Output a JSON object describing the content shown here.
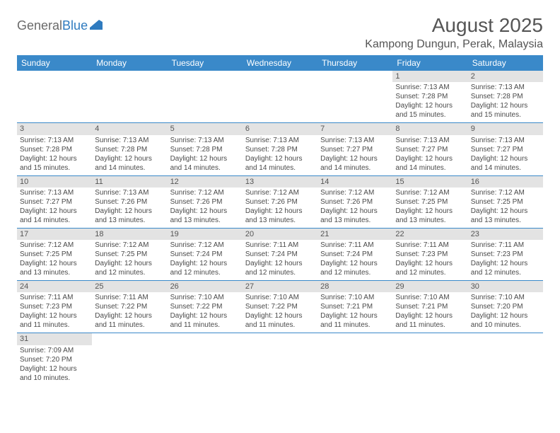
{
  "brand": {
    "part1": "General",
    "part2": "Blue"
  },
  "title": "August 2025",
  "location": "Kampong Dungun, Perak, Malaysia",
  "colors": {
    "header_bg": "#3a89c9",
    "header_fg": "#ffffff",
    "daynum_bg": "#e3e3e3",
    "week_border": "#3a89c9",
    "text": "#4a4a4a",
    "brand_gray": "#6a6a6a",
    "brand_blue": "#2f7bbf"
  },
  "dow": [
    "Sunday",
    "Monday",
    "Tuesday",
    "Wednesday",
    "Thursday",
    "Friday",
    "Saturday"
  ],
  "weeks": [
    [
      {
        "n": "",
        "sr": "",
        "ss": "",
        "dl1": "",
        "dl2": ""
      },
      {
        "n": "",
        "sr": "",
        "ss": "",
        "dl1": "",
        "dl2": ""
      },
      {
        "n": "",
        "sr": "",
        "ss": "",
        "dl1": "",
        "dl2": ""
      },
      {
        "n": "",
        "sr": "",
        "ss": "",
        "dl1": "",
        "dl2": ""
      },
      {
        "n": "",
        "sr": "",
        "ss": "",
        "dl1": "",
        "dl2": ""
      },
      {
        "n": "1",
        "sr": "Sunrise: 7:13 AM",
        "ss": "Sunset: 7:28 PM",
        "dl1": "Daylight: 12 hours",
        "dl2": "and 15 minutes."
      },
      {
        "n": "2",
        "sr": "Sunrise: 7:13 AM",
        "ss": "Sunset: 7:28 PM",
        "dl1": "Daylight: 12 hours",
        "dl2": "and 15 minutes."
      }
    ],
    [
      {
        "n": "3",
        "sr": "Sunrise: 7:13 AM",
        "ss": "Sunset: 7:28 PM",
        "dl1": "Daylight: 12 hours",
        "dl2": "and 15 minutes."
      },
      {
        "n": "4",
        "sr": "Sunrise: 7:13 AM",
        "ss": "Sunset: 7:28 PM",
        "dl1": "Daylight: 12 hours",
        "dl2": "and 14 minutes."
      },
      {
        "n": "5",
        "sr": "Sunrise: 7:13 AM",
        "ss": "Sunset: 7:28 PM",
        "dl1": "Daylight: 12 hours",
        "dl2": "and 14 minutes."
      },
      {
        "n": "6",
        "sr": "Sunrise: 7:13 AM",
        "ss": "Sunset: 7:28 PM",
        "dl1": "Daylight: 12 hours",
        "dl2": "and 14 minutes."
      },
      {
        "n": "7",
        "sr": "Sunrise: 7:13 AM",
        "ss": "Sunset: 7:27 PM",
        "dl1": "Daylight: 12 hours",
        "dl2": "and 14 minutes."
      },
      {
        "n": "8",
        "sr": "Sunrise: 7:13 AM",
        "ss": "Sunset: 7:27 PM",
        "dl1": "Daylight: 12 hours",
        "dl2": "and 14 minutes."
      },
      {
        "n": "9",
        "sr": "Sunrise: 7:13 AM",
        "ss": "Sunset: 7:27 PM",
        "dl1": "Daylight: 12 hours",
        "dl2": "and 14 minutes."
      }
    ],
    [
      {
        "n": "10",
        "sr": "Sunrise: 7:13 AM",
        "ss": "Sunset: 7:27 PM",
        "dl1": "Daylight: 12 hours",
        "dl2": "and 14 minutes."
      },
      {
        "n": "11",
        "sr": "Sunrise: 7:13 AM",
        "ss": "Sunset: 7:26 PM",
        "dl1": "Daylight: 12 hours",
        "dl2": "and 13 minutes."
      },
      {
        "n": "12",
        "sr": "Sunrise: 7:12 AM",
        "ss": "Sunset: 7:26 PM",
        "dl1": "Daylight: 12 hours",
        "dl2": "and 13 minutes."
      },
      {
        "n": "13",
        "sr": "Sunrise: 7:12 AM",
        "ss": "Sunset: 7:26 PM",
        "dl1": "Daylight: 12 hours",
        "dl2": "and 13 minutes."
      },
      {
        "n": "14",
        "sr": "Sunrise: 7:12 AM",
        "ss": "Sunset: 7:26 PM",
        "dl1": "Daylight: 12 hours",
        "dl2": "and 13 minutes."
      },
      {
        "n": "15",
        "sr": "Sunrise: 7:12 AM",
        "ss": "Sunset: 7:25 PM",
        "dl1": "Daylight: 12 hours",
        "dl2": "and 13 minutes."
      },
      {
        "n": "16",
        "sr": "Sunrise: 7:12 AM",
        "ss": "Sunset: 7:25 PM",
        "dl1": "Daylight: 12 hours",
        "dl2": "and 13 minutes."
      }
    ],
    [
      {
        "n": "17",
        "sr": "Sunrise: 7:12 AM",
        "ss": "Sunset: 7:25 PM",
        "dl1": "Daylight: 12 hours",
        "dl2": "and 13 minutes."
      },
      {
        "n": "18",
        "sr": "Sunrise: 7:12 AM",
        "ss": "Sunset: 7:25 PM",
        "dl1": "Daylight: 12 hours",
        "dl2": "and 12 minutes."
      },
      {
        "n": "19",
        "sr": "Sunrise: 7:12 AM",
        "ss": "Sunset: 7:24 PM",
        "dl1": "Daylight: 12 hours",
        "dl2": "and 12 minutes."
      },
      {
        "n": "20",
        "sr": "Sunrise: 7:11 AM",
        "ss": "Sunset: 7:24 PM",
        "dl1": "Daylight: 12 hours",
        "dl2": "and 12 minutes."
      },
      {
        "n": "21",
        "sr": "Sunrise: 7:11 AM",
        "ss": "Sunset: 7:24 PM",
        "dl1": "Daylight: 12 hours",
        "dl2": "and 12 minutes."
      },
      {
        "n": "22",
        "sr": "Sunrise: 7:11 AM",
        "ss": "Sunset: 7:23 PM",
        "dl1": "Daylight: 12 hours",
        "dl2": "and 12 minutes."
      },
      {
        "n": "23",
        "sr": "Sunrise: 7:11 AM",
        "ss": "Sunset: 7:23 PM",
        "dl1": "Daylight: 12 hours",
        "dl2": "and 12 minutes."
      }
    ],
    [
      {
        "n": "24",
        "sr": "Sunrise: 7:11 AM",
        "ss": "Sunset: 7:23 PM",
        "dl1": "Daylight: 12 hours",
        "dl2": "and 11 minutes."
      },
      {
        "n": "25",
        "sr": "Sunrise: 7:11 AM",
        "ss": "Sunset: 7:22 PM",
        "dl1": "Daylight: 12 hours",
        "dl2": "and 11 minutes."
      },
      {
        "n": "26",
        "sr": "Sunrise: 7:10 AM",
        "ss": "Sunset: 7:22 PM",
        "dl1": "Daylight: 12 hours",
        "dl2": "and 11 minutes."
      },
      {
        "n": "27",
        "sr": "Sunrise: 7:10 AM",
        "ss": "Sunset: 7:22 PM",
        "dl1": "Daylight: 12 hours",
        "dl2": "and 11 minutes."
      },
      {
        "n": "28",
        "sr": "Sunrise: 7:10 AM",
        "ss": "Sunset: 7:21 PM",
        "dl1": "Daylight: 12 hours",
        "dl2": "and 11 minutes."
      },
      {
        "n": "29",
        "sr": "Sunrise: 7:10 AM",
        "ss": "Sunset: 7:21 PM",
        "dl1": "Daylight: 12 hours",
        "dl2": "and 11 minutes."
      },
      {
        "n": "30",
        "sr": "Sunrise: 7:10 AM",
        "ss": "Sunset: 7:20 PM",
        "dl1": "Daylight: 12 hours",
        "dl2": "and 10 minutes."
      }
    ],
    [
      {
        "n": "31",
        "sr": "Sunrise: 7:09 AM",
        "ss": "Sunset: 7:20 PM",
        "dl1": "Daylight: 12 hours",
        "dl2": "and 10 minutes."
      },
      {
        "n": "",
        "sr": "",
        "ss": "",
        "dl1": "",
        "dl2": ""
      },
      {
        "n": "",
        "sr": "",
        "ss": "",
        "dl1": "",
        "dl2": ""
      },
      {
        "n": "",
        "sr": "",
        "ss": "",
        "dl1": "",
        "dl2": ""
      },
      {
        "n": "",
        "sr": "",
        "ss": "",
        "dl1": "",
        "dl2": ""
      },
      {
        "n": "",
        "sr": "",
        "ss": "",
        "dl1": "",
        "dl2": ""
      },
      {
        "n": "",
        "sr": "",
        "ss": "",
        "dl1": "",
        "dl2": ""
      }
    ]
  ]
}
